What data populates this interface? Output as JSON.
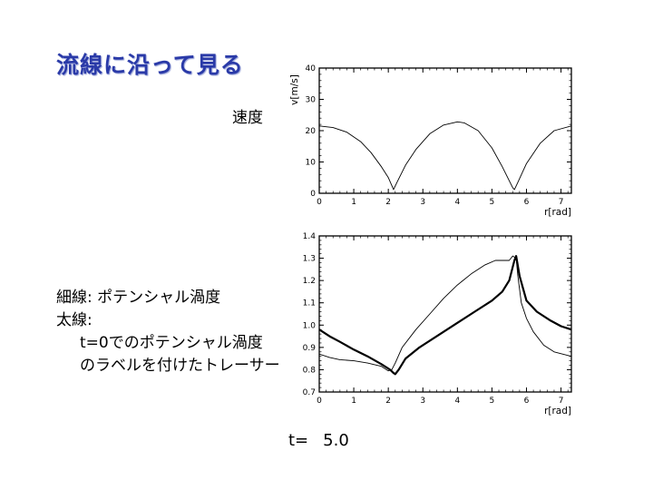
{
  "slide": {
    "title": "流線に沿って見る",
    "speed_label": "速度",
    "legend_thin": "細線: ポテンシャル渦度",
    "legend_thick_head": "太線:",
    "legend_thick_line1": "t=0でのポテンシャル渦度",
    "legend_thick_line2": "のラベルを付けたトレーサー",
    "time_label": "t=",
    "time_value": "5.0"
  },
  "chart_data": [
    {
      "type": "line",
      "title": "",
      "xlabel": "r[rad]",
      "ylabel": "v[m/s]",
      "xlim": [
        0,
        7.3
      ],
      "ylim": [
        0,
        40
      ],
      "xticks": [
        0,
        1,
        2,
        3,
        4,
        5,
        6,
        7
      ],
      "yticks": [
        0,
        10,
        20,
        30,
        40
      ],
      "grid": false,
      "series": [
        {
          "style": "thin",
          "x": [
            0,
            0.4,
            0.8,
            1.2,
            1.5,
            1.8,
            2.0,
            2.1,
            2.15,
            2.25,
            2.5,
            2.8,
            3.2,
            3.6,
            4.0,
            4.2,
            4.6,
            5.0,
            5.3,
            5.5,
            5.6,
            5.65,
            5.75,
            6.0,
            6.4,
            6.8,
            7.3
          ],
          "y": [
            21.5,
            21,
            19.5,
            16.5,
            13,
            8.5,
            5,
            2.5,
            1.2,
            3.5,
            9,
            14,
            19,
            21.8,
            22.8,
            22.5,
            20,
            14.5,
            8.5,
            4,
            1.8,
            1.2,
            3.5,
            9.5,
            16,
            20,
            21.5
          ]
        }
      ]
    },
    {
      "type": "line",
      "title": "",
      "xlabel": "r[rad]",
      "ylabel": "",
      "xlim": [
        0,
        7.3
      ],
      "ylim": [
        0.7,
        1.4
      ],
      "xticks": [
        0,
        1,
        2,
        3,
        4,
        5,
        6,
        7
      ],
      "yticks": [
        0.7,
        0.8,
        0.9,
        1.0,
        1.1,
        1.2,
        1.3,
        1.4
      ],
      "grid": false,
      "series": [
        {
          "style": "thin",
          "x": [
            0,
            0.3,
            0.6,
            1.0,
            1.4,
            1.8,
            2.0,
            2.1,
            2.2,
            2.4,
            2.8,
            3.2,
            3.6,
            4.0,
            4.4,
            4.8,
            5.1,
            5.3,
            5.5,
            5.6,
            5.7,
            5.75,
            5.85,
            6.0,
            6.2,
            6.5,
            6.8,
            7.3
          ],
          "y": [
            0.87,
            0.855,
            0.845,
            0.84,
            0.83,
            0.815,
            0.795,
            0.8,
            0.83,
            0.9,
            0.98,
            1.05,
            1.12,
            1.18,
            1.23,
            1.27,
            1.29,
            1.29,
            1.29,
            1.31,
            1.3,
            1.22,
            1.1,
            1.03,
            0.97,
            0.91,
            0.88,
            0.86
          ]
        },
        {
          "style": "thick",
          "x": [
            0,
            0.3,
            0.6,
            1.0,
            1.4,
            1.8,
            2.05,
            2.15,
            2.2,
            2.3,
            2.5,
            2.9,
            3.4,
            4.0,
            4.5,
            5.0,
            5.3,
            5.5,
            5.6,
            5.65,
            5.7,
            5.8,
            6.0,
            6.3,
            6.7,
            7.0,
            7.3
          ],
          "y": [
            0.98,
            0.95,
            0.925,
            0.89,
            0.86,
            0.825,
            0.8,
            0.785,
            0.78,
            0.8,
            0.85,
            0.9,
            0.95,
            1.01,
            1.06,
            1.11,
            1.15,
            1.2,
            1.26,
            1.29,
            1.31,
            1.22,
            1.11,
            1.06,
            1.02,
            0.995,
            0.98
          ]
        }
      ]
    }
  ]
}
